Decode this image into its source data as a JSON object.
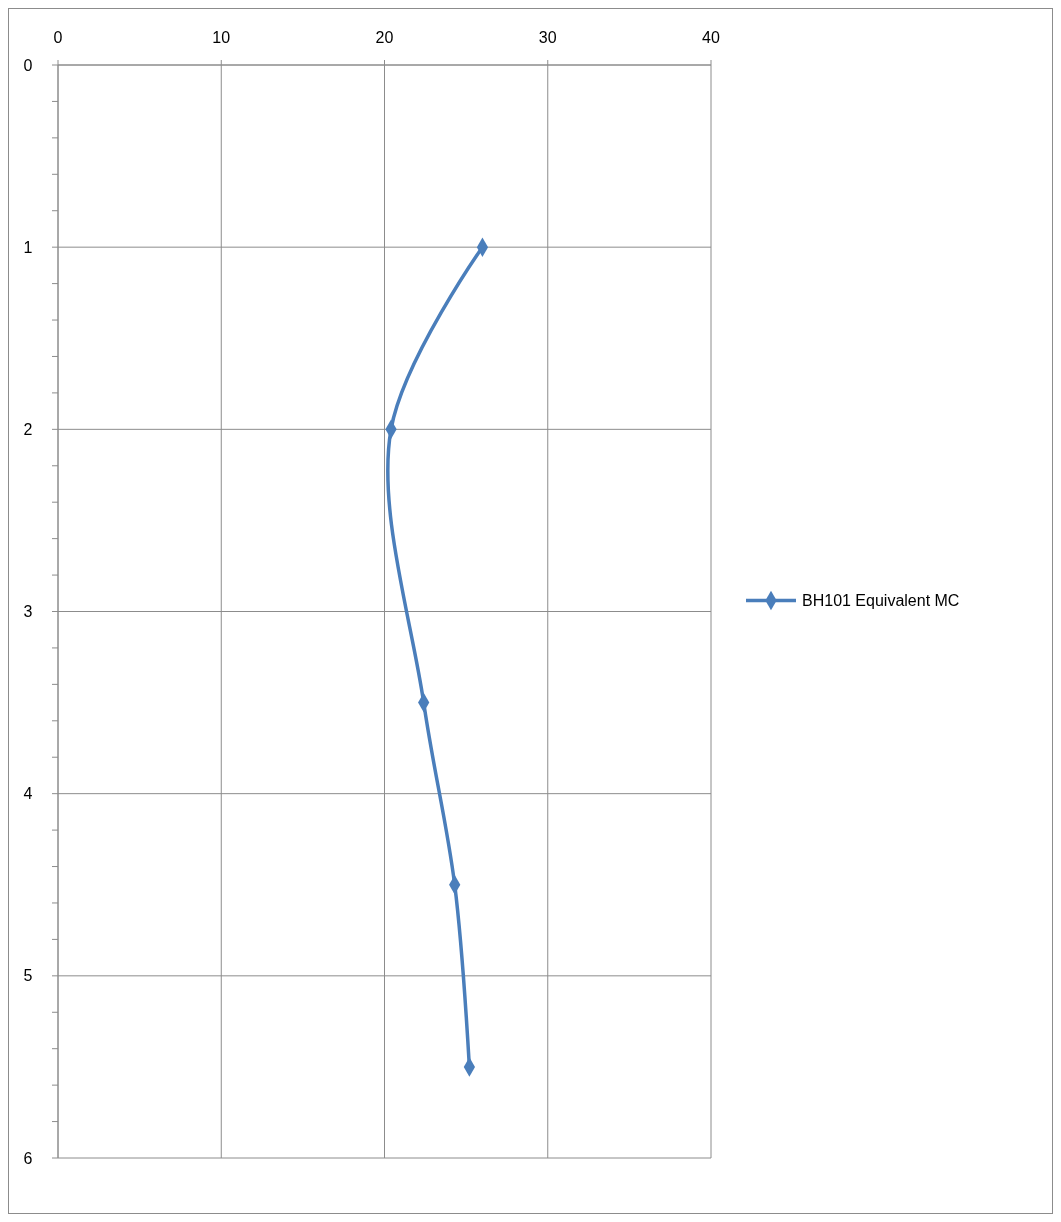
{
  "chart_data": {
    "type": "line",
    "xlim": [
      0,
      40
    ],
    "xticks": [
      0,
      10,
      20,
      30,
      40
    ],
    "ylim": [
      6,
      0
    ],
    "yticks": [
      0,
      {
        "value": 0.2,
        "label": null
      },
      {
        "value": 0.4,
        "label": null
      },
      {
        "value": 0.6,
        "label": null
      },
      {
        "value": 0.8,
        "label": null
      },
      1,
      {
        "value": 1.2,
        "label": null
      },
      {
        "value": 1.4,
        "label": null
      },
      {
        "value": 1.6,
        "label": null
      },
      {
        "value": 1.8,
        "label": null
      },
      2,
      {
        "value": 2.2,
        "label": null
      },
      {
        "value": 2.4,
        "label": null
      },
      {
        "value": 2.6,
        "label": null
      },
      {
        "value": 2.8,
        "label": null
      },
      3,
      {
        "value": 3.2,
        "label": null
      },
      {
        "value": 3.4,
        "label": null
      },
      {
        "value": 3.6,
        "label": null
      },
      {
        "value": 3.8,
        "label": null
      },
      4,
      {
        "value": 4.2,
        "label": null
      },
      {
        "value": 4.4,
        "label": null
      },
      {
        "value": 4.6,
        "label": null
      },
      {
        "value": 4.8,
        "label": null
      },
      5,
      {
        "value": 5.2,
        "label": null
      },
      {
        "value": 5.4,
        "label": null
      },
      {
        "value": 5.6,
        "label": null
      },
      {
        "value": 5.8,
        "label": null
      },
      6
    ],
    "series": [
      {
        "name": "BH101 Equivalent MC",
        "color": "#4a7ebb",
        "x": [
          26,
          20.4,
          22.4,
          24.3,
          25.2
        ],
        "values": [
          1,
          2,
          3.5,
          4.5,
          5.5
        ]
      }
    ],
    "grid": true,
    "legend": "right",
    "marker": "diamond",
    "line_style": "solid"
  }
}
